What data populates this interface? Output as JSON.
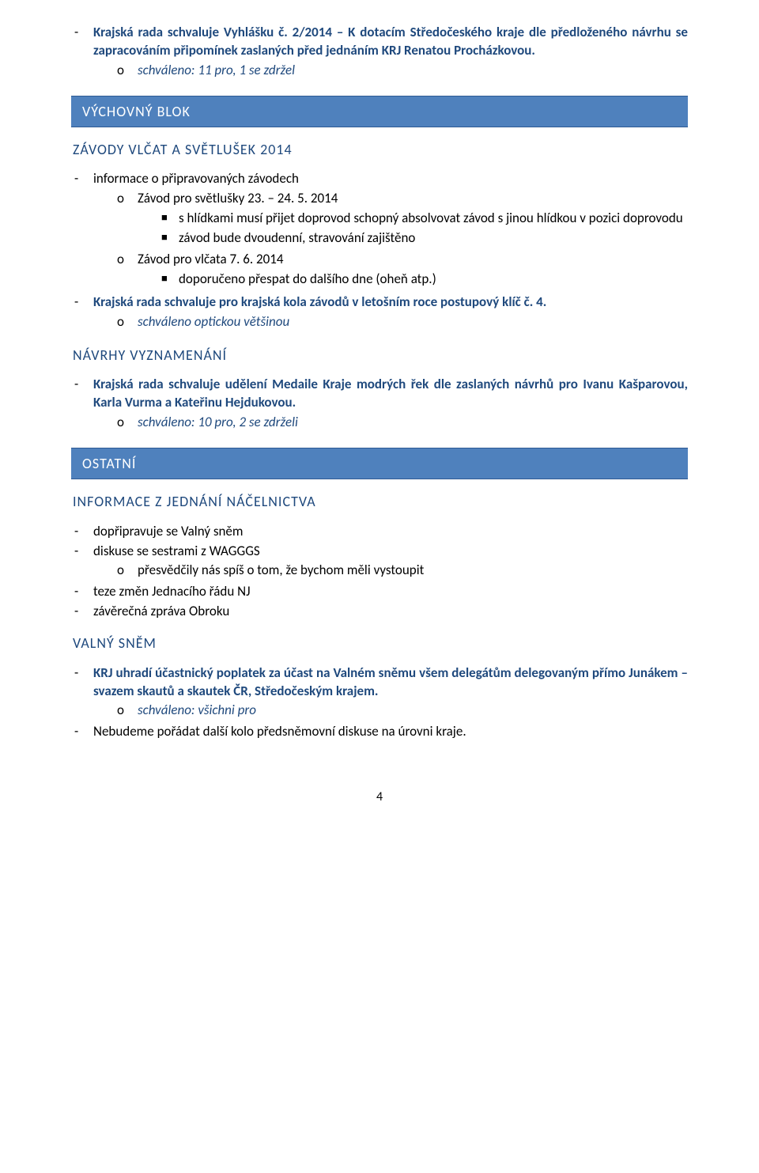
{
  "colors": {
    "banner_bg": "#4f81bd",
    "banner_border": "#2e5a94",
    "banner_text": "#ffffff",
    "subheading_text": "#1f497d",
    "blue_text": "#1f497d",
    "body_text": "#000000",
    "page_bg": "#ffffff"
  },
  "intro": {
    "item1": {
      "pre": "Krajská rada schvaluje Vyhlášku č. 2/2014 – K dotacím Středočeského kraje dle předloženého návrhu se zapracováním připomínek zaslaných před jednáním KRJ Renatou Procházkovou.",
      "sub": "schváleno: 11 pro, 1 se zdržel"
    }
  },
  "banner1": "VÝCHOVNÝ BLOK",
  "sub1": "ZÁVODY VLČAT A SVĚTLUŠEK 2014",
  "zavody": {
    "l1": "informace o připravovaných závodech",
    "l2a": "Závod pro světlušky 23. – 24. 5. 2014",
    "l3a": "s hlídkami musí přijet doprovod schopný absolvovat závod s jinou hlídkou v pozici doprovodu",
    "l3b": "závod bude dvoudenní, stravování zajištěno",
    "l2b": "Závod pro vlčata 7. 6. 2014",
    "l3c": "doporučeno přespat do dalšího dne (oheň atp.)",
    "l1b": "Krajská rada schvaluje pro krajská kola závodů v letošním roce postupový klíč č. 4.",
    "l2c": "schváleno optickou většinou"
  },
  "sub2": "NÁVRHY VYZNAMENÁNÍ",
  "navrhy": {
    "l1": "Krajská rada schvaluje udělení Medaile Kraje modrých řek dle zaslaných návrhů pro Ivanu Kašparovou, Karla Vurma a Kateřinu Hejdukovou.",
    "l2": "schváleno: 10 pro, 2 se zdrželi"
  },
  "banner2": "OSTATNÍ",
  "sub3": "INFORMACE Z JEDNÁNÍ NÁČELNICTVA",
  "info": {
    "i1": "dopřipravuje se Valný sněm",
    "i2": "diskuse se sestrami z WAGGGS",
    "i2a": "přesvědčily nás spíš o tom, že bychom měli vystoupit",
    "i3": "teze změn Jednacího řádu NJ",
    "i4": "závěrečná zpráva Obroku"
  },
  "sub4": "VALNÝ SNĚM",
  "valny": {
    "l1": "KRJ uhradí účastnický poplatek za účast na Valném sněmu všem delegátům delegovaným přímo Junákem – svazem skautů a skautek ČR, Středočeským krajem.",
    "l2a": "schváleno: všichni pro",
    "l1b": "Nebudeme pořádat další kolo předsněmovní diskuse na úrovni kraje."
  },
  "page_number": "4"
}
